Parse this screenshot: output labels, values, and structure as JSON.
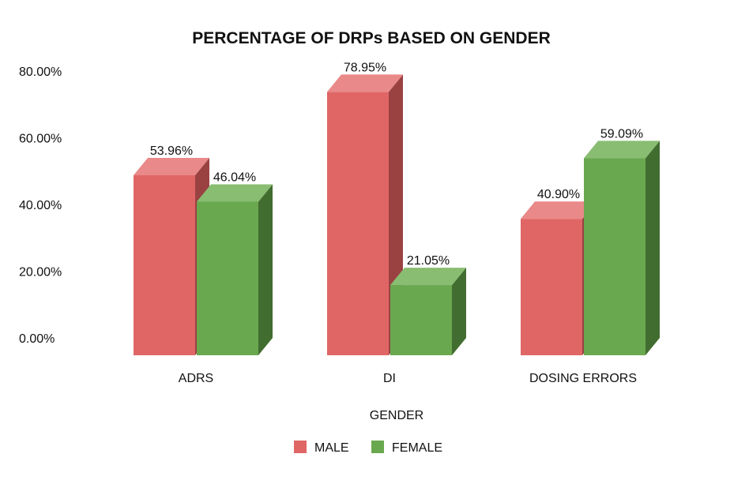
{
  "chart_data": {
    "type": "bar",
    "title": "PERCENTAGE OF DRPs BASED ON GENDER",
    "xlabel": "GENDER",
    "ylabel": "",
    "categories": [
      "ADRS",
      "DI",
      "DOSING ERRORS"
    ],
    "series": [
      {
        "name": "MALE",
        "values": [
          53.96,
          78.95,
          40.9
        ],
        "labels": [
          "53.96%",
          "78.95%",
          "40.90%"
        ],
        "color": "#e06666",
        "side": "#9a4242",
        "top": "#e98989"
      },
      {
        "name": "FEMALE",
        "values": [
          46.04,
          21.05,
          59.09
        ],
        "labels": [
          "46.04%",
          "21.05%",
          "59.09%"
        ],
        "color": "#6aa84f",
        "side": "#426d30",
        "top": "#89bd72"
      }
    ],
    "yticks": [
      "0.00%",
      "20.00%",
      "40.00%",
      "60.00%",
      "80.00%"
    ],
    "ytick_values": [
      0,
      20,
      40,
      60,
      80
    ],
    "ylim": [
      0,
      80
    ],
    "grid": false,
    "legend": "bottom"
  }
}
